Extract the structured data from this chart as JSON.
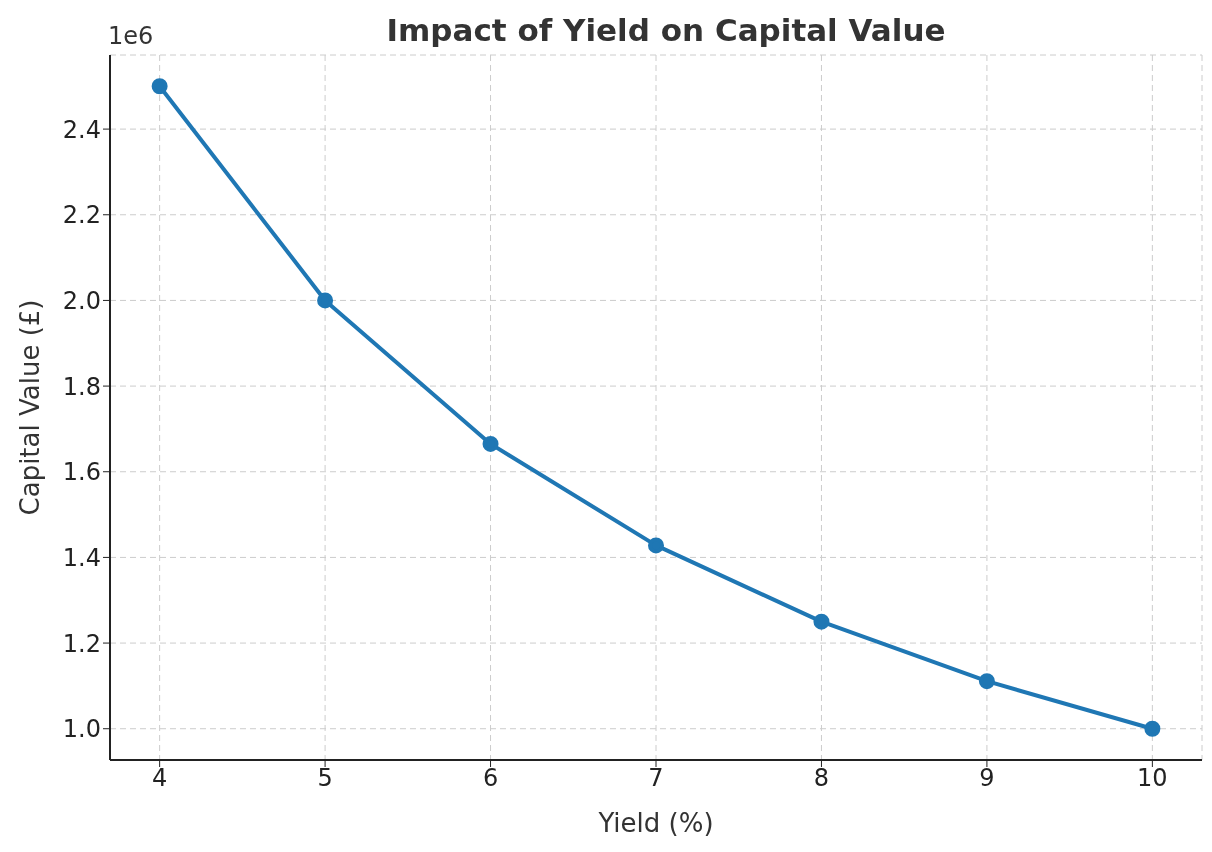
{
  "chart_data": {
    "type": "line",
    "title": "Impact of Yield on Capital Value",
    "xlabel": "Yield (%)",
    "ylabel": "Capital Value (£)",
    "annotations": [
      "1e6"
    ],
    "x": [
      4,
      5,
      6,
      7,
      8,
      9,
      10
    ],
    "series": [
      {
        "color": "#1f77b4",
        "values": [
          2.5,
          2.0,
          1.665,
          1.428,
          1.25,
          1.111,
          1.0
        ]
      }
    ],
    "xlim": [
      3.7,
      10.3
    ],
    "xticks": [
      4,
      5,
      6,
      7,
      8,
      9,
      10
    ],
    "ylim": [
      0.927,
      2.573
    ],
    "yticks": [
      {
        "value": 1.0,
        "label": "1.0"
      },
      {
        "value": 1.2,
        "label": "1.2"
      },
      {
        "value": 1.4,
        "label": "1.4"
      },
      {
        "value": 1.6,
        "label": "1.6"
      },
      {
        "value": 1.8,
        "label": "1.8"
      },
      {
        "value": 2.0,
        "label": "2.0"
      },
      {
        "value": 2.2,
        "label": "2.2"
      },
      {
        "value": 2.4,
        "label": "2.4"
      }
    ],
    "grid": true,
    "marker": "circle",
    "line_style": "solid",
    "legend": false
  }
}
